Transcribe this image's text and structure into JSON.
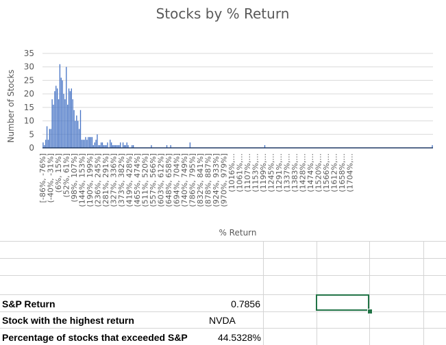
{
  "chart_data": {
    "type": "bar",
    "title": "Stocks by % Return",
    "xlabel": "% Return",
    "ylabel": "Number of Stocks",
    "ylim": [
      0,
      35
    ],
    "yticks": [
      0,
      5,
      10,
      15,
      20,
      25,
      30,
      35
    ],
    "grid": true,
    "bar_color": "#4472c4",
    "category_labels": [
      "[-86%, -76%]",
      "(-40%, -31%]",
      "(6%, 15%]",
      "(52%, 61%]",
      "(98%, 107%]",
      "(144%, 153%]",
      "(190%, 199%]",
      "(236%, 245%]",
      "(281%, 291%]",
      "(327%, 336%]",
      "(373%, 382%]",
      "(419%, 428%]",
      "(465%, 474%]",
      "(511%, 520%]",
      "(557%, 566%]",
      "(603%, 612%]",
      "(648%, 658%]",
      "(694%, 704%]",
      "(740%, 749%]",
      "(786%, 795%]",
      "(832%, 841%]",
      "(878%, 887%]",
      "(924%, 933%]",
      "(970%, 979%]",
      "(1016%,...",
      "(1061%,...",
      "(1107%,...",
      "(1153%,...",
      "(1199%,...",
      "(1245%,...",
      "(1291%,...",
      "(1337%,...",
      "(1383%,...",
      "(1428%,...",
      "(1474%,...",
      "(1520%,...",
      "(1566%,...",
      "(1612%,...",
      "(1658%,...",
      "(1704%,..."
    ],
    "values": [
      2,
      1,
      3,
      8,
      3,
      7,
      7,
      18,
      16,
      21,
      23,
      22,
      18,
      31,
      26,
      25,
      20,
      18,
      30,
      16,
      22,
      21,
      22,
      18,
      14,
      10,
      12,
      10,
      7,
      14,
      3,
      3,
      3,
      4,
      3,
      4,
      4,
      4,
      4,
      1,
      2,
      3,
      5,
      1,
      1,
      2,
      2,
      1,
      1,
      1,
      2,
      0,
      3,
      2,
      1,
      1,
      1,
      1,
      1,
      1,
      2,
      0,
      2,
      1,
      1,
      2,
      1,
      0,
      0,
      1,
      1,
      0,
      0,
      0,
      0,
      0,
      0,
      0,
      0,
      0,
      0,
      0,
      0,
      0,
      1,
      0,
      0,
      0,
      0,
      0,
      0,
      0,
      0,
      0,
      0,
      0,
      1,
      0,
      0,
      1,
      0,
      0,
      0,
      0,
      0,
      0,
      0,
      0,
      0,
      0,
      0,
      0,
      0,
      0,
      2,
      0,
      0,
      0,
      0,
      0,
      0,
      0,
      0,
      0,
      0,
      0,
      0,
      0,
      0,
      0,
      0,
      0,
      0,
      0,
      0,
      0,
      0,
      0,
      0,
      0,
      0,
      0,
      0,
      0,
      0,
      0,
      0,
      0,
      0,
      0,
      0,
      0,
      0,
      0,
      0,
      0,
      0,
      0,
      0,
      0,
      0,
      0,
      0,
      0,
      0,
      0,
      0,
      0,
      0,
      0,
      0,
      0,
      1,
      0,
      0,
      0,
      0,
      0,
      0,
      0,
      0,
      0,
      0,
      0,
      0,
      0,
      0,
      0,
      0,
      0,
      0,
      0,
      0,
      0,
      0,
      0,
      0,
      0,
      0,
      0,
      0,
      0,
      0,
      0,
      0,
      0,
      0,
      0,
      0,
      0,
      0,
      0,
      0,
      0,
      0,
      0,
      0,
      0,
      0,
      0,
      0,
      0,
      0,
      0,
      0,
      0,
      0,
      0,
      0,
      0,
      0,
      0,
      0,
      0,
      0,
      0,
      0,
      0,
      0,
      0,
      0,
      0,
      0,
      0,
      0,
      0,
      0,
      0,
      0,
      0,
      0,
      0,
      0,
      0,
      0,
      0,
      0,
      0,
      0,
      0,
      0,
      0,
      0,
      0,
      0,
      0,
      0,
      0,
      0,
      0,
      0,
      0,
      0,
      0,
      0,
      0,
      0,
      0,
      0,
      0,
      0,
      0,
      0,
      0,
      0,
      0,
      0,
      0,
      0,
      0,
      0,
      0,
      0,
      0,
      0,
      0,
      0,
      0,
      0,
      0,
      0,
      0,
      1
    ]
  },
  "sheet": {
    "rows": [
      {
        "label": "S&P Return",
        "value": "0.7856"
      },
      {
        "label": "Stock with the highest return",
        "value": "NVDA"
      },
      {
        "label": "Percentage of stocks that exceeded S&P",
        "value": "44.5328%"
      }
    ]
  }
}
